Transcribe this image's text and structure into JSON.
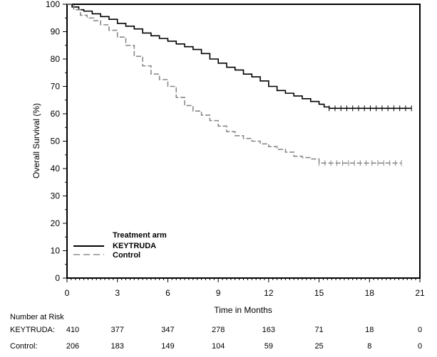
{
  "chart_data": {
    "type": "line",
    "title": "",
    "xlabel": "Time in Months",
    "ylabel": "Overall Survival (%)",
    "xlim": [
      0,
      21
    ],
    "ylim": [
      0,
      100
    ],
    "x_ticks": [
      "0",
      "3",
      "6",
      "9",
      "12",
      "15",
      "18",
      "21"
    ],
    "y_ticks": [
      "0",
      "10",
      "20",
      "30",
      "40",
      "50",
      "60",
      "70",
      "80",
      "90",
      "100"
    ],
    "grid": false,
    "legend": {
      "title": "Treatment arm",
      "placement": "bottom-left",
      "entries": [
        "KEYTRUDA",
        "Control"
      ]
    },
    "series": [
      {
        "name": "KEYTRUDA",
        "color": "#000000",
        "style": "solid",
        "x": [
          0,
          0.3,
          0.7,
          1.0,
          1.5,
          2.0,
          2.5,
          3.0,
          3.5,
          4.0,
          4.5,
          5.0,
          5.5,
          6.0,
          6.5,
          7.0,
          7.5,
          8.0,
          8.5,
          9.0,
          9.5,
          10.0,
          10.5,
          11.0,
          11.5,
          12.0,
          12.5,
          13.0,
          13.5,
          14.0,
          14.5,
          15.0,
          15.3,
          15.6,
          20.5
        ],
        "y": [
          100,
          99,
          98,
          97.5,
          96.5,
          95.5,
          94.5,
          93,
          92,
          91,
          89.5,
          88.5,
          87.5,
          86.5,
          85.5,
          84.5,
          83.5,
          82,
          80,
          78.5,
          77,
          76,
          74.5,
          73.5,
          72,
          70,
          68.5,
          67.5,
          66.5,
          65.5,
          64.5,
          63.5,
          62.5,
          62,
          62
        ]
      },
      {
        "name": "Control",
        "color": "#888888",
        "style": "dashed",
        "x": [
          0,
          0.4,
          0.8,
          1.2,
          1.6,
          2.0,
          2.5,
          3.0,
          3.5,
          4.0,
          4.5,
          5.0,
          5.5,
          6.0,
          6.5,
          7.0,
          7.5,
          8.0,
          8.5,
          9.0,
          9.5,
          10.0,
          10.5,
          11.0,
          11.5,
          12.0,
          12.5,
          13.0,
          13.5,
          14.0,
          14.5,
          15.0,
          19.9
        ],
        "y": [
          100,
          98,
          96,
          95,
          94,
          92.5,
          90.5,
          88,
          85,
          81,
          77.5,
          74.5,
          72.5,
          70,
          66,
          63,
          61,
          59.5,
          57.5,
          55.5,
          53.5,
          52,
          51,
          50,
          49,
          48,
          47,
          46,
          44.5,
          44,
          43.5,
          42,
          42
        ]
      }
    ],
    "number_at_risk": {
      "title": "Number at Risk",
      "times": [
        0,
        3,
        6,
        9,
        12,
        15,
        18,
        21
      ],
      "rows": [
        {
          "label": "KEYTRUDA:",
          "values": [
            "410",
            "377",
            "347",
            "278",
            "163",
            "71",
            "18",
            "0"
          ]
        },
        {
          "label": "Control:",
          "values": [
            "206",
            "183",
            "149",
            "104",
            "59",
            "25",
            "8",
            "0"
          ]
        }
      ]
    }
  }
}
